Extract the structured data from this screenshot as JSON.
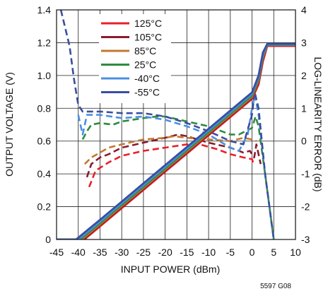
{
  "chart_data": {
    "type": "line",
    "code": "5597 G08",
    "xlabel": "INPUT POWER (dBm)",
    "ylabel": "OUTPUT VOLTAGE (V)",
    "y2label": "LOG-LINEARITY ERROR (dB)",
    "xlim": [
      -45,
      10
    ],
    "ylim": [
      0,
      1.4
    ],
    "y2lim": [
      -3,
      4
    ],
    "xticks": [
      "-45",
      "-40",
      "-35",
      "-30",
      "-25",
      "-20",
      "-15",
      "-10",
      "-5",
      "0",
      "5",
      "10"
    ],
    "yticks": [
      "0",
      "0.2",
      "0.4",
      "0.6",
      "0.8",
      "1.0",
      "1.2",
      "1.4"
    ],
    "y2ticks": [
      "-3",
      "-2",
      "-1",
      "0",
      "1",
      "2",
      "3",
      "4"
    ],
    "grid": true,
    "legend_position": "top-center",
    "series": [
      {
        "name": "125°C",
        "color": "#e8202a",
        "output_voltage": [
          [
            -45,
            0
          ],
          [
            -38.6,
            0
          ],
          [
            -35,
            0.08
          ],
          [
            -30,
            0.191
          ],
          [
            -25,
            0.302
          ],
          [
            -20,
            0.413
          ],
          [
            -15,
            0.524
          ],
          [
            -10,
            0.635
          ],
          [
            -5,
            0.746
          ],
          [
            0,
            0.857
          ],
          [
            1.5,
            0.945
          ],
          [
            2.5,
            1.085
          ],
          [
            3.5,
            1.18
          ],
          [
            10,
            1.18
          ]
        ],
        "error": [
          [
            -37.5,
            -1.4
          ],
          [
            -36,
            -0.9
          ],
          [
            -33,
            -0.65
          ],
          [
            -30,
            -0.45
          ],
          [
            -25,
            -0.3
          ],
          [
            -20,
            -0.2
          ],
          [
            -15,
            -0.1
          ],
          [
            -12,
            -0.1
          ],
          [
            -8,
            -0.25
          ],
          [
            -5,
            -0.4
          ],
          [
            -2,
            -0.5
          ],
          [
            0,
            -0.55
          ],
          [
            0.5,
            -0.75
          ]
        ]
      },
      {
        "name": "105°C",
        "color": "#8c1a2e",
        "output_voltage": [
          [
            -45,
            0
          ],
          [
            -38.9,
            0
          ],
          [
            -35,
            0.087
          ],
          [
            -30,
            0.198
          ],
          [
            -25,
            0.309
          ],
          [
            -20,
            0.42
          ],
          [
            -15,
            0.531
          ],
          [
            -10,
            0.642
          ],
          [
            -5,
            0.753
          ],
          [
            0,
            0.864
          ],
          [
            1.5,
            0.96
          ],
          [
            2.5,
            1.1
          ],
          [
            3.5,
            1.183
          ],
          [
            10,
            1.183
          ]
        ],
        "error": [
          [
            -38,
            -1.1
          ],
          [
            -37,
            -0.7
          ],
          [
            -35,
            -0.5
          ],
          [
            -33,
            -0.4
          ],
          [
            -30,
            -0.2
          ],
          [
            -25,
            -0.05
          ],
          [
            -20,
            0.1
          ],
          [
            -17,
            0.2
          ],
          [
            -15,
            0.15
          ],
          [
            -10,
            -0.05
          ],
          [
            -5,
            -0.2
          ],
          [
            -2,
            -0.35
          ],
          [
            -0.5,
            -0.3
          ],
          [
            0.5,
            -0.5
          ],
          [
            1,
            -0.1
          ],
          [
            2,
            -0.7
          ]
        ]
      },
      {
        "name": "85°C",
        "color": "#c07a30",
        "output_voltage": [
          [
            -45,
            0
          ],
          [
            -39.2,
            0
          ],
          [
            -35,
            0.093
          ],
          [
            -30,
            0.204
          ],
          [
            -25,
            0.315
          ],
          [
            -20,
            0.426
          ],
          [
            -15,
            0.537
          ],
          [
            -10,
            0.648
          ],
          [
            -5,
            0.759
          ],
          [
            0,
            0.87
          ],
          [
            1.5,
            0.97
          ],
          [
            2.5,
            1.11
          ],
          [
            3.5,
            1.185
          ],
          [
            10,
            1.185
          ]
        ],
        "error": [
          [
            -38.5,
            -0.7
          ],
          [
            -37,
            -0.5
          ],
          [
            -35,
            -0.35
          ],
          [
            -33,
            -0.2
          ],
          [
            -30,
            -0.1
          ],
          [
            -25,
            0.05
          ],
          [
            -20,
            0.1
          ],
          [
            -18,
            0.15
          ],
          [
            -15,
            0.1
          ],
          [
            -10,
            0.05
          ],
          [
            -5,
            0
          ],
          [
            -2,
            0.1
          ],
          [
            0,
            0.05
          ],
          [
            1,
            0
          ]
        ]
      },
      {
        "name": "25°C",
        "color": "#2e8b3e",
        "output_voltage": [
          [
            -45,
            0
          ],
          [
            -39.6,
            0
          ],
          [
            -35,
            0.1
          ],
          [
            -30,
            0.211
          ],
          [
            -25,
            0.322
          ],
          [
            -20,
            0.433
          ],
          [
            -15,
            0.544
          ],
          [
            -10,
            0.655
          ],
          [
            -5,
            0.766
          ],
          [
            0,
            0.877
          ],
          [
            1.5,
            0.98
          ],
          [
            2.5,
            1.12
          ],
          [
            3.5,
            1.187
          ],
          [
            10,
            1.187
          ]
        ],
        "error": [
          [
            -39,
            0.05
          ],
          [
            -38,
            0.3
          ],
          [
            -37,
            0.5
          ],
          [
            -35,
            0.55
          ],
          [
            -32,
            0.5
          ],
          [
            -30,
            0.6
          ],
          [
            -25,
            0.7
          ],
          [
            -22,
            0.75
          ],
          [
            -20,
            0.75
          ],
          [
            -15,
            0.6
          ],
          [
            -10,
            0.45
          ],
          [
            -5,
            0.2
          ],
          [
            -3,
            0.2
          ],
          [
            0,
            0.4
          ],
          [
            0.8,
            0.75
          ],
          [
            1.5,
            0.45
          ],
          [
            3,
            -1
          ],
          [
            4.5,
            -2.5
          ],
          [
            5,
            -3
          ]
        ]
      },
      {
        "name": "-40°C",
        "color": "#4a90e2",
        "output_voltage": [
          [
            -45,
            0
          ],
          [
            -40,
            0
          ],
          [
            -35,
            0.11
          ],
          [
            -30,
            0.221
          ],
          [
            -25,
            0.332
          ],
          [
            -20,
            0.443
          ],
          [
            -15,
            0.554
          ],
          [
            -10,
            0.665
          ],
          [
            -5,
            0.776
          ],
          [
            0,
            0.887
          ],
          [
            1.5,
            0.99
          ],
          [
            2.5,
            1.13
          ],
          [
            3.5,
            1.19
          ],
          [
            10,
            1.19
          ]
        ],
        "error": [
          [
            -40,
            0.8
          ],
          [
            -39,
            0.2
          ],
          [
            -38,
            0.8
          ],
          [
            -35,
            0.8
          ],
          [
            -30,
            0.7
          ],
          [
            -25,
            0.75
          ],
          [
            -20,
            0.65
          ],
          [
            -15,
            0.45
          ],
          [
            -10,
            0.2
          ],
          [
            -5,
            -0.2
          ],
          [
            -3,
            -0.3
          ],
          [
            -1,
            0.2
          ],
          [
            0,
            1.0
          ],
          [
            0.7,
            1.4
          ],
          [
            1.5,
            0.8
          ],
          [
            3,
            -1
          ],
          [
            4.5,
            -2.5
          ],
          [
            5,
            -3
          ]
        ]
      },
      {
        "name": "-55°C",
        "color": "#3a4ea0",
        "output_voltage": [
          [
            -45,
            0
          ],
          [
            -40.5,
            0
          ],
          [
            -35,
            0.12
          ],
          [
            -30,
            0.231
          ],
          [
            -25,
            0.342
          ],
          [
            -20,
            0.453
          ],
          [
            -15,
            0.564
          ],
          [
            -10,
            0.675
          ],
          [
            -5,
            0.786
          ],
          [
            0,
            0.897
          ],
          [
            1.5,
            1.0
          ],
          [
            2.5,
            1.14
          ],
          [
            3.5,
            1.193
          ],
          [
            10,
            1.193
          ]
        ],
        "error": [
          [
            -44,
            4
          ],
          [
            -42,
            2.9
          ],
          [
            -41,
            1.9
          ],
          [
            -40,
            1.1
          ],
          [
            -39,
            0.9
          ],
          [
            -35,
            0.9
          ],
          [
            -30,
            0.85
          ],
          [
            -25,
            0.85
          ],
          [
            -20,
            0.75
          ],
          [
            -15,
            0.55
          ],
          [
            -10,
            0.3
          ],
          [
            -5,
            0
          ],
          [
            -2,
            -0.1
          ],
          [
            0,
            0.8
          ],
          [
            0.6,
            1.5
          ],
          [
            1.5,
            1.0
          ],
          [
            3,
            -1
          ],
          [
            4.5,
            -2.5
          ],
          [
            5,
            -3
          ]
        ]
      }
    ]
  }
}
